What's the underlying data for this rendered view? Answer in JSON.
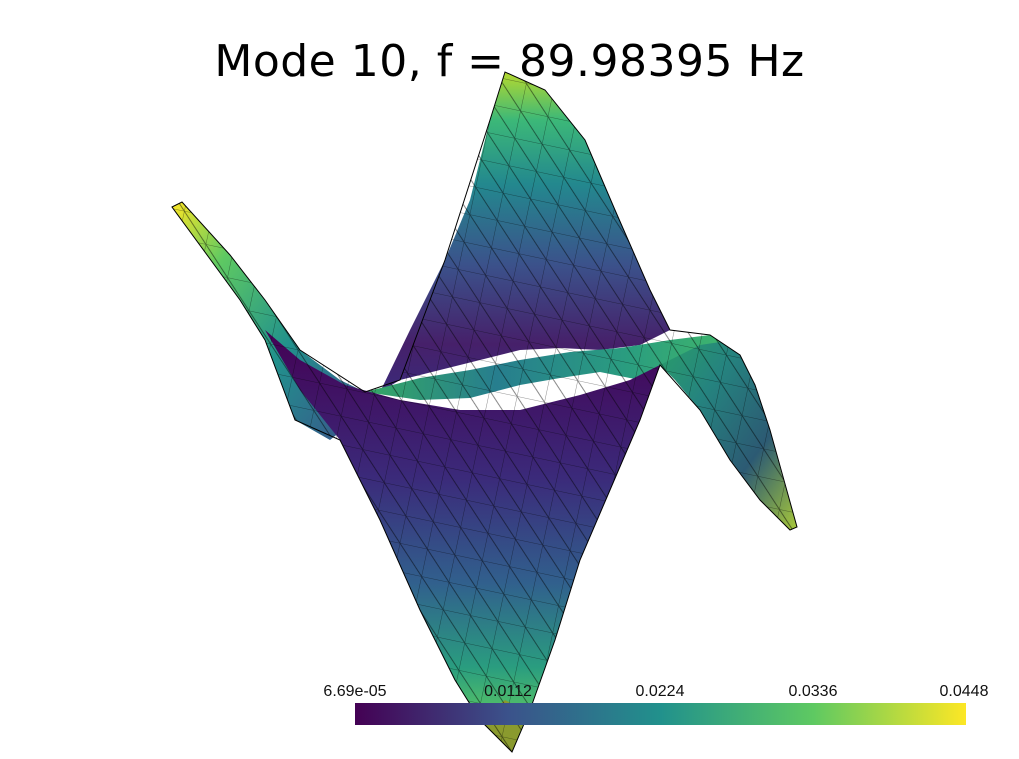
{
  "title": "Mode 10, f = 89.98395 Hz",
  "colorbar": {
    "min": 6.69e-05,
    "max": 0.0448,
    "ticks": [
      "6.69e-05",
      "0.0112",
      "0.0224",
      "0.0336",
      "0.0448"
    ],
    "colormap": [
      "#440154",
      "#3b528b",
      "#21918c",
      "#5ec962",
      "#fde725"
    ]
  },
  "scene": {
    "colors": {
      "mesh_edges": "#000000",
      "low": "#440154",
      "mid": "#21918c",
      "high": "#fde725"
    }
  }
}
